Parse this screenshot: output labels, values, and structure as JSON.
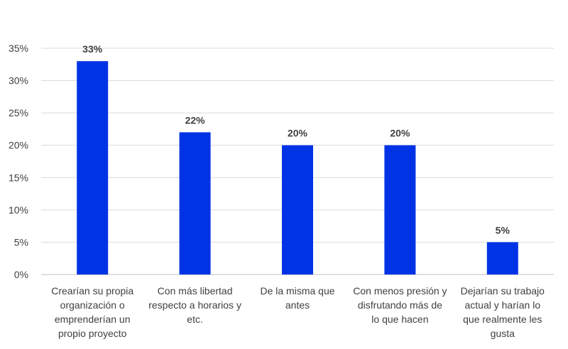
{
  "chart_data": {
    "type": "bar",
    "categories": [
      [
        "Crearían su propia",
        "organización o",
        "emprenderían un",
        "propio proyecto"
      ],
      [
        "Con más libertad",
        "respecto a horarios y",
        "etc."
      ],
      [
        "De la misma que",
        "antes"
      ],
      [
        "Con menos presión y",
        "disfrutando más de",
        "lo que hacen"
      ],
      [
        "Dejarían su trabajo",
        "actual y harían lo",
        "que realmente les",
        "gusta"
      ]
    ],
    "values": [
      33,
      22,
      20,
      20,
      5
    ],
    "data_labels": [
      "33%",
      "22%",
      "20%",
      "20%",
      "5%"
    ],
    "yticks": [
      "0%",
      "5%",
      "10%",
      "15%",
      "20%",
      "25%",
      "30%",
      "35%"
    ],
    "ylim": [
      0,
      35
    ],
    "grid": true,
    "legend": "none",
    "bar_color": "#0033E6",
    "grid_color": "#D9D9D9",
    "text_color": "#404040"
  }
}
